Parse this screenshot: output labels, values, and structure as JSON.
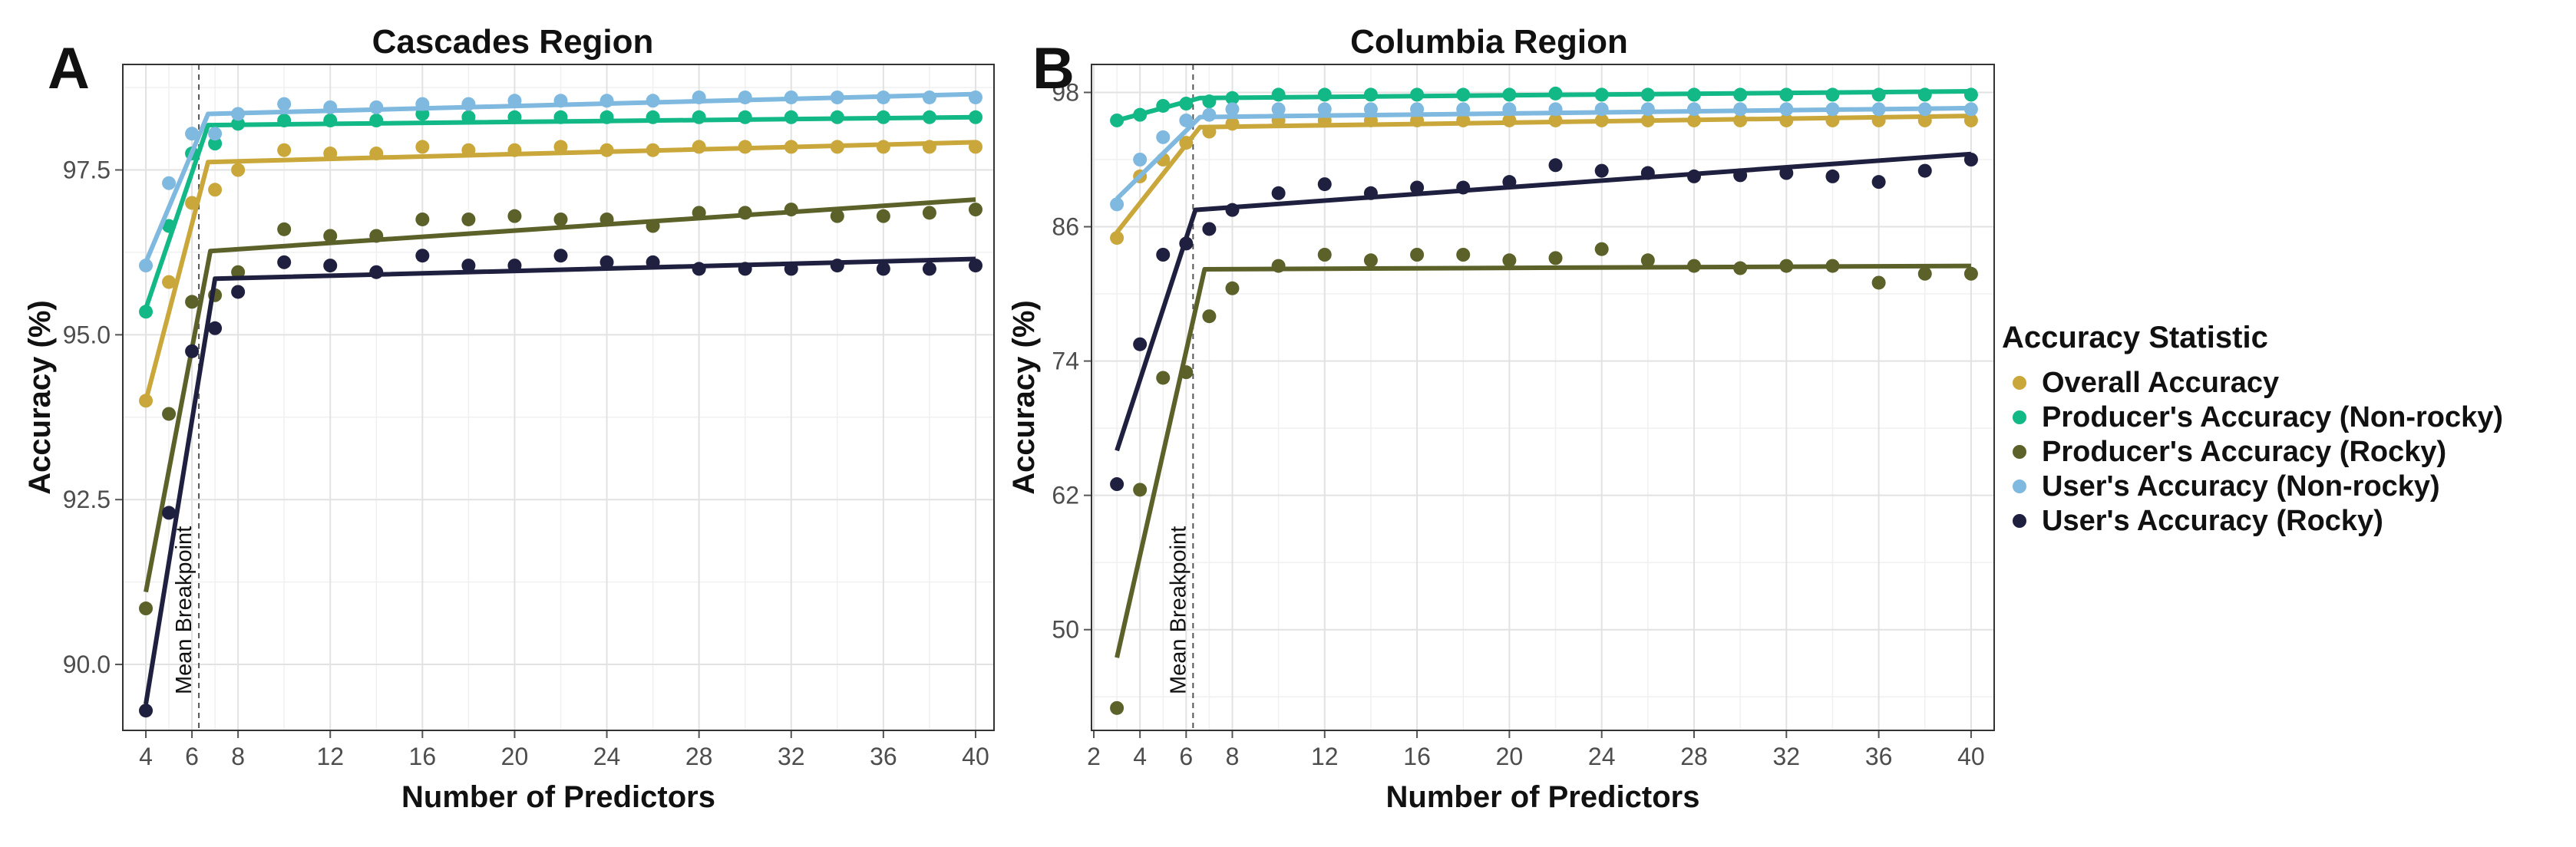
{
  "figure": {
    "panel_labels": [
      "A",
      "B"
    ],
    "legend_title": "Accuracy Statistic",
    "legend": [
      {
        "name": "Overall Accuracy",
        "color": "#C9A73A"
      },
      {
        "name": "Producer's Accuracy (Non-rocky)",
        "color": "#12B886"
      },
      {
        "name": "Producer's Accuracy (Rocky)",
        "color": "#5B6129"
      },
      {
        "name": "User's Accuracy (Non-rocky)",
        "color": "#7FB9DF"
      },
      {
        "name": "User's Accuracy (Rocky)",
        "color": "#1F2040"
      }
    ]
  },
  "chart_data": [
    {
      "type": "scatter",
      "title": "Cascades Region",
      "xlabel": "Number of Predictors",
      "ylabel": "Accuracy (%)",
      "xlim": [
        3.0,
        40.8
      ],
      "ylim": [
        89.0,
        99.1
      ],
      "xticks": [
        4,
        6,
        8,
        12,
        16,
        20,
        24,
        28,
        32,
        36,
        40
      ],
      "xtick_labels": [
        "4",
        "6",
        "8",
        "12",
        "16",
        "20",
        "24",
        "28",
        "32",
        "36",
        "40"
      ],
      "yticks": [
        90.0,
        92.5,
        95.0,
        97.5
      ],
      "ytick_labels": [
        "90.0",
        "92.5",
        "95.0",
        "97.5"
      ],
      "breakpoint": {
        "x": 6.3,
        "label": "Mean Breakpoint"
      },
      "x": [
        4,
        5,
        6,
        7,
        8,
        10,
        12,
        14,
        16,
        18,
        20,
        22,
        24,
        26,
        28,
        30,
        32,
        34,
        36,
        38,
        40
      ],
      "series": [
        {
          "name": "Overall Accuracy",
          "values": [
            94.0,
            95.8,
            97.0,
            97.2,
            97.5,
            97.8,
            97.75,
            97.75,
            97.85,
            97.8,
            97.8,
            97.85,
            97.8,
            97.8,
            97.85,
            97.85,
            97.85,
            97.85,
            97.85,
            97.85,
            97.85
          ],
          "fit": [
            [
              4,
              94.0
            ],
            [
              6.7,
              97.62
            ],
            [
              40,
              97.92
            ]
          ]
        },
        {
          "name": "Producer's Accuracy (Non-rocky)",
          "values": [
            95.35,
            96.65,
            97.75,
            97.9,
            98.2,
            98.25,
            98.25,
            98.25,
            98.35,
            98.3,
            98.3,
            98.3,
            98.3,
            98.3,
            98.3,
            98.3,
            98.3,
            98.3,
            98.3,
            98.3,
            98.3
          ],
          "fit": [
            [
              4,
              95.4
            ],
            [
              6.7,
              98.18
            ],
            [
              40,
              98.3
            ]
          ]
        },
        {
          "name": "Producer's Accuracy (Rocky)",
          "values": [
            90.85,
            93.8,
            95.5,
            95.6,
            95.95,
            96.6,
            96.5,
            96.5,
            96.75,
            96.75,
            96.8,
            96.75,
            96.75,
            96.65,
            96.85,
            96.85,
            96.9,
            96.8,
            96.8,
            96.85,
            96.9
          ],
          "fit": [
            [
              4,
              91.1
            ],
            [
              6.8,
              96.27
            ],
            [
              40,
              97.05
            ]
          ]
        },
        {
          "name": "User's Accuracy (Non-rocky)",
          "values": [
            96.05,
            97.3,
            98.05,
            98.05,
            98.35,
            98.5,
            98.45,
            98.45,
            98.5,
            98.5,
            98.55,
            98.55,
            98.55,
            98.55,
            98.6,
            98.6,
            98.6,
            98.6,
            98.6,
            98.6,
            98.6
          ],
          "fit": [
            [
              4,
              96.1
            ],
            [
              6.7,
              98.35
            ],
            [
              40,
              98.65
            ]
          ]
        },
        {
          "name": "User's Accuracy (Rocky)",
          "values": [
            89.3,
            92.3,
            94.75,
            95.1,
            95.65,
            96.1,
            96.05,
            95.95,
            96.2,
            96.05,
            96.05,
            96.2,
            96.1,
            96.1,
            96.0,
            96.0,
            96.0,
            96.05,
            96.0,
            96.0,
            96.05
          ],
          "fit": [
            [
              4,
              89.4
            ],
            [
              7.0,
              95.85
            ],
            [
              40,
              96.15
            ]
          ]
        }
      ]
    },
    {
      "type": "scatter",
      "title": "Columbia Region",
      "xlabel": "Number of Predictors",
      "ylabel": "Accuracy (%)",
      "xlim": [
        1.9,
        41.0
      ],
      "ylim": [
        41.0,
        100.5
      ],
      "xticks": [
        2,
        4,
        6,
        8,
        12,
        16,
        20,
        24,
        28,
        32,
        36,
        40
      ],
      "xtick_labels": [
        "2",
        "4",
        "6",
        "8",
        "12",
        "16",
        "20",
        "24",
        "28",
        "32",
        "36",
        "40"
      ],
      "yticks": [
        50,
        62,
        74,
        86,
        98
      ],
      "ytick_labels": [
        "50",
        "62",
        "74",
        "86",
        "98"
      ],
      "breakpoint": {
        "x": 6.3,
        "label": "Mean Breakpoint"
      },
      "x": [
        3,
        4,
        5,
        6,
        7,
        8,
        10,
        12,
        14,
        16,
        18,
        20,
        22,
        24,
        26,
        28,
        30,
        32,
        34,
        36,
        38,
        40
      ],
      "series": [
        {
          "name": "Overall Accuracy",
          "values": [
            85.0,
            90.5,
            92.0,
            93.5,
            94.5,
            95.2,
            95.5,
            95.5,
            95.5,
            95.5,
            95.5,
            95.5,
            95.5,
            95.5,
            95.5,
            95.5,
            95.5,
            95.5,
            95.5,
            95.5,
            95.5,
            95.5
          ],
          "fit": [
            [
              3,
              85.5
            ],
            [
              6.6,
              94.9
            ],
            [
              40,
              95.9
            ]
          ]
        },
        {
          "name": "Producer's Accuracy (Non-rocky)",
          "values": [
            95.5,
            96.0,
            96.8,
            97.0,
            97.2,
            97.5,
            97.8,
            97.8,
            97.8,
            97.8,
            97.8,
            97.8,
            97.9,
            97.8,
            97.8,
            97.8,
            97.8,
            97.8,
            97.8,
            97.8,
            97.8,
            97.8
          ],
          "fit": [
            [
              3,
              95.5
            ],
            [
              6.6,
              97.5
            ],
            [
              40,
              98.1
            ]
          ]
        },
        {
          "name": "Producer's Accuracy (Rocky)",
          "values": [
            43.0,
            62.5,
            72.5,
            73.0,
            78.0,
            80.5,
            82.5,
            83.5,
            83.0,
            83.5,
            83.5,
            83.0,
            83.2,
            84.0,
            83.0,
            82.5,
            82.3,
            82.5,
            82.5,
            81.0,
            81.8,
            81.8
          ],
          "fit": [
            [
              3,
              47.5
            ],
            [
              6.8,
              82.2
            ],
            [
              40,
              82.5
            ]
          ]
        },
        {
          "name": "User's Accuracy (Non-rocky)",
          "values": [
            88.0,
            92.0,
            94.0,
            95.5,
            96.0,
            96.5,
            96.5,
            96.5,
            96.5,
            96.5,
            96.5,
            96.5,
            96.5,
            96.5,
            96.5,
            96.5,
            96.5,
            96.5,
            96.5,
            96.5,
            96.5,
            96.5
          ],
          "fit": [
            [
              3,
              88.5
            ],
            [
              6.6,
              95.8
            ],
            [
              40,
              96.6
            ]
          ]
        },
        {
          "name": "User's Accuracy (Rocky)",
          "values": [
            63.0,
            75.5,
            83.5,
            84.5,
            85.8,
            87.5,
            89.0,
            89.8,
            89.0,
            89.5,
            89.5,
            90.0,
            91.5,
            91.0,
            90.8,
            90.5,
            90.6,
            90.8,
            90.5,
            90.0,
            91.0,
            92.0
          ],
          "fit": [
            [
              3,
              66.0
            ],
            [
              6.4,
              87.5
            ],
            [
              40,
              92.5
            ]
          ]
        }
      ]
    }
  ]
}
